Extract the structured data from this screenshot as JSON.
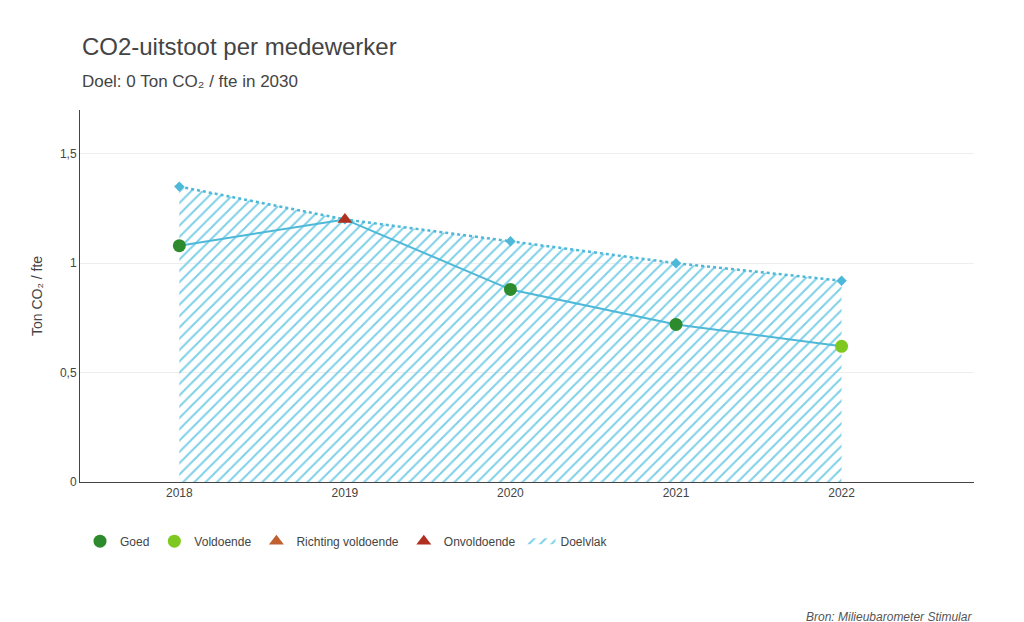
{
  "chart_data": {
    "type": "line",
    "title": "CO2-uitstoot per medewerker",
    "subtitle": "Doel: 0 Ton CO₂ / fte in 2030",
    "ylabel": "Ton CO₂ / fte",
    "annotations": [
      "Bron: Milieubarometer Stimular"
    ],
    "x": [
      2018,
      2019,
      2020,
      2021,
      2022
    ],
    "series": [
      {
        "type": "line",
        "color": "#4db8d8",
        "line_style": "dotted",
        "marker": "diamond",
        "values": [
          1.35,
          1.2,
          1.1,
          1.0,
          0.92
        ]
      },
      {
        "type": "line",
        "color": "#4db8d8",
        "line_style": "solid",
        "values": [
          1.08,
          1.2,
          0.88,
          0.72,
          0.62
        ]
      },
      {
        "name": "Goed",
        "type": "scatter",
        "color": "#2d8b2d",
        "marker": "circle",
        "values": [
          1.08,
          null,
          0.88,
          0.72,
          null
        ]
      },
      {
        "name": "Voldoende",
        "type": "scatter",
        "color": "#7ec820",
        "marker": "circle",
        "values": [
          null,
          null,
          null,
          null,
          0.62
        ]
      },
      {
        "name": "Richting voldoende",
        "type": "scatter",
        "color": "#c06030",
        "marker": "triangle",
        "values": [
          null,
          null,
          null,
          null,
          null
        ]
      },
      {
        "name": "Onvoldoende",
        "type": "scatter",
        "color": "#b03020",
        "marker": "triangle",
        "values": [
          null,
          1.2,
          null,
          null,
          null
        ]
      },
      {
        "name": "Doelvlak",
        "type": "area",
        "color": "#7dd0e8",
        "values": [
          1.35,
          1.2,
          1.1,
          1.0,
          0.92
        ]
      }
    ],
    "xlim": [
      2017.4,
      2022.8
    ],
    "xticks": [
      2018,
      2019,
      2020,
      2021,
      2022
    ],
    "ylim": [
      0,
      1.7
    ],
    "yticks": [
      0,
      {
        "value": 0.5,
        "label": "0,5"
      },
      1,
      {
        "value": 1.5,
        "label": "1,5"
      }
    ],
    "grid": true
  }
}
